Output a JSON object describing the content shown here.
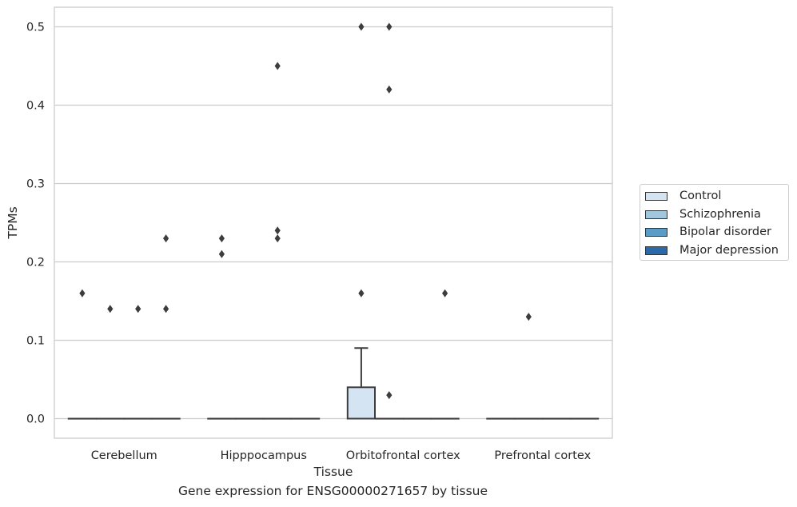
{
  "chart_data": {
    "type": "box",
    "title": "",
    "caption": "Gene expression for ENSG00000271657 by tissue",
    "xlabel": "Tissue",
    "ylabel": "TPMs",
    "ylim": [
      -0.025,
      0.525
    ],
    "yticks": [
      "0.0",
      "0.1",
      "0.2",
      "0.3",
      "0.4",
      "0.5"
    ],
    "ytick_values": [
      0,
      0.1,
      0.2,
      0.3,
      0.4,
      0.5
    ],
    "grid": true,
    "legend_position": "right",
    "categories": [
      "Cerebellum",
      "Hipppocampus",
      "Orbitofrontal cortex",
      "Prefrontal cortex"
    ],
    "series": [
      {
        "name": "Control",
        "color": "#d5e4f3",
        "boxes": [
          {
            "q1": 0,
            "median": 0,
            "q3": 0,
            "whisker_low": 0,
            "whisker_high": 0,
            "outliers": [
              0.16
            ]
          },
          {
            "q1": 0,
            "median": 0,
            "q3": 0,
            "whisker_low": 0,
            "whisker_high": 0,
            "outliers": [
              0.21,
              0.23
            ]
          },
          {
            "q1": 0,
            "median": 0,
            "q3": 0.04,
            "whisker_low": 0,
            "whisker_high": 0.09,
            "outliers": [
              0.16,
              0.5
            ]
          },
          {
            "q1": 0,
            "median": 0,
            "q3": 0,
            "whisker_low": 0,
            "whisker_high": 0,
            "outliers": []
          }
        ]
      },
      {
        "name": "Schizophrenia",
        "color": "#a1c6dd",
        "boxes": [
          {
            "q1": 0,
            "median": 0,
            "q3": 0,
            "whisker_low": 0,
            "whisker_high": 0,
            "outliers": [
              0.14
            ]
          },
          {
            "q1": 0,
            "median": 0,
            "q3": 0,
            "whisker_low": 0,
            "whisker_high": 0,
            "outliers": []
          },
          {
            "q1": 0,
            "median": 0,
            "q3": 0,
            "whisker_low": 0,
            "whisker_high": 0,
            "outliers": [
              0.03,
              0.42,
              0.5
            ]
          },
          {
            "q1": 0,
            "median": 0,
            "q3": 0,
            "whisker_low": 0,
            "whisker_high": 0,
            "outliers": [
              0.13
            ]
          }
        ]
      },
      {
        "name": "Bipolar disorder",
        "color": "#5b9bc8",
        "boxes": [
          {
            "q1": 0,
            "median": 0,
            "q3": 0,
            "whisker_low": 0,
            "whisker_high": 0,
            "outliers": [
              0.14
            ]
          },
          {
            "q1": 0,
            "median": 0,
            "q3": 0,
            "whisker_low": 0,
            "whisker_high": 0,
            "outliers": [
              0.23,
              0.24,
              0.45
            ]
          },
          {
            "q1": 0,
            "median": 0,
            "q3": 0,
            "whisker_low": 0,
            "whisker_high": 0,
            "outliers": []
          },
          {
            "q1": 0,
            "median": 0,
            "q3": 0,
            "whisker_low": 0,
            "whisker_high": 0,
            "outliers": []
          }
        ]
      },
      {
        "name": "Major depression",
        "color": "#2a6aa9",
        "boxes": [
          {
            "q1": 0,
            "median": 0,
            "q3": 0,
            "whisker_low": 0,
            "whisker_high": 0,
            "outliers": [
              0.14,
              0.23
            ]
          },
          {
            "q1": 0,
            "median": 0,
            "q3": 0,
            "whisker_low": 0,
            "whisker_high": 0,
            "outliers": []
          },
          {
            "q1": 0,
            "median": 0,
            "q3": 0,
            "whisker_low": 0,
            "whisker_high": 0,
            "outliers": [
              0.16
            ]
          },
          {
            "q1": 0,
            "median": 0,
            "q3": 0,
            "whisker_low": 0,
            "whisker_high": 0,
            "outliers": []
          }
        ]
      }
    ]
  }
}
